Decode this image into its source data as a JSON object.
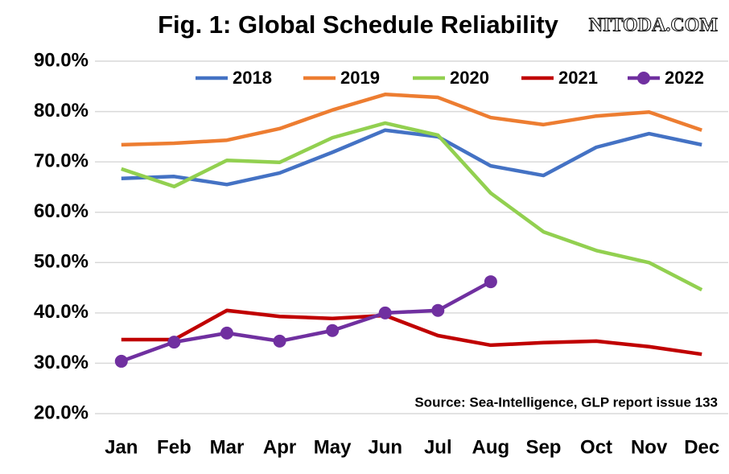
{
  "chart_data": {
    "type": "line",
    "title": "Fig. 1: Global Schedule Reliability",
    "annotations": [
      "Source: Sea-Intelligence, GLP report issue 133",
      "NITODA.COM"
    ],
    "categories": [
      "Jan",
      "Feb",
      "Mar",
      "Apr",
      "May",
      "Jun",
      "Jul",
      "Aug",
      "Sep",
      "Oct",
      "Nov",
      "Dec"
    ],
    "series": [
      {
        "name": "2018",
        "color": "#4472c4",
        "values": [
          66.7,
          67.1,
          65.5,
          67.8,
          71.9,
          76.3,
          75.0,
          69.2,
          67.3,
          72.9,
          75.6,
          73.4
        ]
      },
      {
        "name": "2019",
        "color": "#ed7d31",
        "values": [
          73.4,
          73.7,
          74.3,
          76.6,
          80.3,
          83.4,
          82.8,
          78.8,
          77.4,
          79.1,
          79.9,
          76.3
        ]
      },
      {
        "name": "2020",
        "color": "#92d050",
        "values": [
          68.6,
          65.1,
          70.3,
          69.9,
          74.8,
          77.7,
          75.3,
          63.8,
          56.1,
          52.4,
          50.0,
          44.6
        ]
      },
      {
        "name": "2021",
        "color": "#c00000",
        "values": [
          34.7,
          34.7,
          40.5,
          39.3,
          38.9,
          39.5,
          35.5,
          33.6,
          34.1,
          34.4,
          33.3,
          31.8
        ]
      },
      {
        "name": "2022",
        "color": "#7030a0",
        "markers": true,
        "values": [
          30.4,
          34.2,
          36.0,
          34.4,
          36.5,
          40.0,
          40.5,
          46.2,
          null,
          null,
          null,
          null
        ]
      }
    ],
    "ylim": [
      20,
      90
    ],
    "yticks": [
      {
        "value": 20,
        "label": "20.0%"
      },
      {
        "value": 30,
        "label": "30.0%"
      },
      {
        "value": 40,
        "label": "40.0%"
      },
      {
        "value": 50,
        "label": "50.0%"
      },
      {
        "value": 60,
        "label": "60.0%"
      },
      {
        "value": 70,
        "label": "70.0%"
      },
      {
        "value": 80,
        "label": "80.0%"
      },
      {
        "value": 90,
        "label": "90.0%"
      }
    ],
    "grid": true,
    "legend": "top"
  }
}
